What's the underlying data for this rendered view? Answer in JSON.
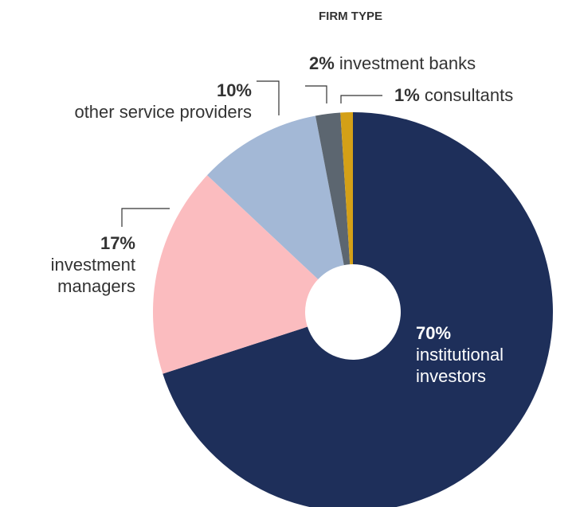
{
  "chart_data": {
    "type": "donut",
    "title": "FIRM TYPE",
    "categories": [
      "institutional investors",
      "investment managers",
      "other service providers",
      "investment banks",
      "consultants"
    ],
    "values": [
      70,
      17,
      10,
      2,
      1
    ],
    "value_labels": [
      "70%",
      "17%",
      "10%",
      "2%",
      "1%"
    ],
    "colors": [
      "#1e2f5a",
      "#fbbcbf",
      "#a3b8d6",
      "#5c6670",
      "#d4a017"
    ]
  }
}
